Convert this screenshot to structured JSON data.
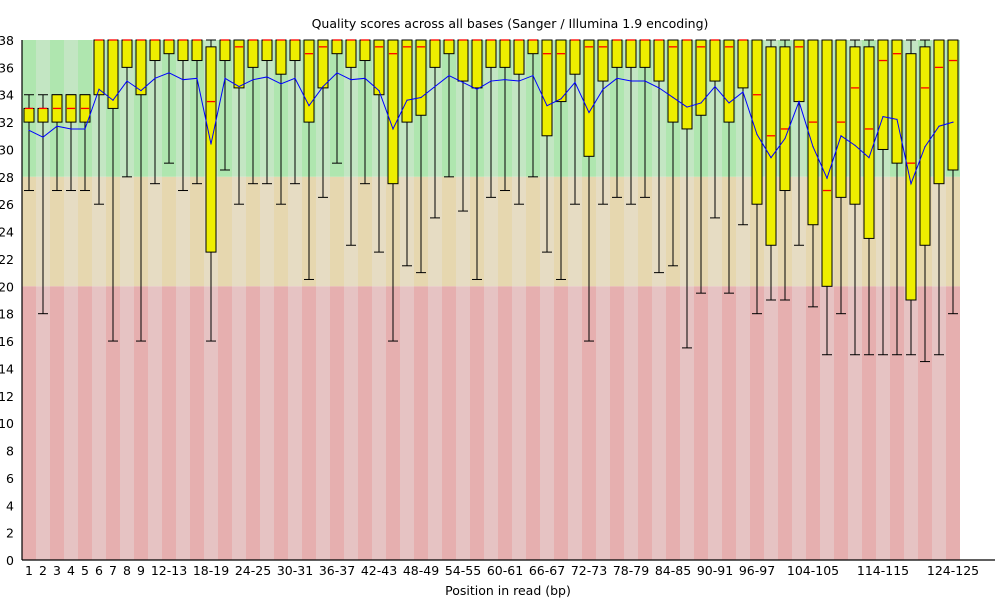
{
  "chart_data": {
    "type": "boxplot",
    "title": "Quality scores across all bases (Sanger / Illumina 1.9 encoding)",
    "xlabel": "Position in read (bp)",
    "ylabel": "",
    "ylim": [
      0,
      38
    ],
    "y_ticks": [
      "0",
      "2",
      "4",
      "6",
      "8",
      "10",
      "12",
      "14",
      "16",
      "18",
      "20",
      "22",
      "24",
      "26",
      "28",
      "30",
      "32",
      "34",
      "36",
      "38"
    ],
    "x_tick_labels": [
      {
        "label": "1",
        "bin": 0
      },
      {
        "label": "2",
        "bin": 1
      },
      {
        "label": "3",
        "bin": 2
      },
      {
        "label": "4",
        "bin": 3
      },
      {
        "label": "5",
        "bin": 4
      },
      {
        "label": "6",
        "bin": 5
      },
      {
        "label": "7",
        "bin": 6
      },
      {
        "label": "8",
        "bin": 7
      },
      {
        "label": "9",
        "bin": 8
      },
      {
        "label": "12-13",
        "bin": 10
      },
      {
        "label": "18-19",
        "bin": 13
      },
      {
        "label": "24-25",
        "bin": 16
      },
      {
        "label": "30-31",
        "bin": 19
      },
      {
        "label": "36-37",
        "bin": 22
      },
      {
        "label": "42-43",
        "bin": 25
      },
      {
        "label": "48-49",
        "bin": 28
      },
      {
        "label": "54-55",
        "bin": 31
      },
      {
        "label": "60-61",
        "bin": 34
      },
      {
        "label": "66-67",
        "bin": 37
      },
      {
        "label": "72-73",
        "bin": 40
      },
      {
        "label": "78-79",
        "bin": 43
      },
      {
        "label": "84-85",
        "bin": 46
      },
      {
        "label": "90-91",
        "bin": 49
      },
      {
        "label": "96-97",
        "bin": 52
      },
      {
        "label": "104-105",
        "bin": 56
      },
      {
        "label": "114-115",
        "bin": 61
      },
      {
        "label": "124-125",
        "bin": 66
      }
    ],
    "bin_count": 67,
    "quality_zones": [
      {
        "zone": "good",
        "from": 28,
        "to": 38,
        "colors": [
          "#afe6af",
          "#c3e6c3"
        ]
      },
      {
        "zone": "reasonable",
        "from": 20,
        "to": 28,
        "colors": [
          "#e6d7af",
          "#e6dcc3"
        ]
      },
      {
        "zone": "poor",
        "from": 0,
        "to": 20,
        "colors": [
          "#e6afaf",
          "#e6c3c3"
        ]
      }
    ],
    "colors": {
      "box": "#eeee00",
      "median": "#ff0000",
      "mean": "#0000ff",
      "whisker": "#000000"
    },
    "lower_whisker": [
      27,
      18,
      27,
      27,
      27,
      26,
      16,
      28,
      16,
      27.5,
      29,
      27,
      27.5,
      16,
      28.5,
      26,
      27.5,
      27.5,
      26,
      27.5,
      20.5,
      26.5,
      29,
      23,
      27.5,
      22.5,
      16,
      21.5,
      21,
      25,
      28,
      25.5,
      20.5,
      26.5,
      27,
      26,
      28,
      22.5,
      20.5,
      26,
      16,
      26,
      26.5,
      26,
      26.5,
      21,
      21.5,
      15.5,
      19.5,
      25,
      19.5,
      24.5,
      18,
      19,
      19,
      23,
      18.5,
      15,
      18,
      15,
      15,
      15,
      15,
      15,
      14.5,
      15,
      18
    ],
    "q1": [
      32,
      32,
      32,
      32,
      32,
      34,
      33,
      36,
      34,
      36.5,
      37,
      36.5,
      36.5,
      22.5,
      36.5,
      34.5,
      36,
      36.5,
      35.5,
      36.5,
      32,
      34.5,
      37,
      36,
      36.5,
      34,
      27.5,
      32,
      32.5,
      36,
      37,
      35,
      34.5,
      36,
      36,
      35.5,
      37,
      31,
      33.5,
      35.5,
      29.5,
      35,
      36,
      36,
      36,
      35,
      32,
      31.5,
      32.5,
      35,
      32,
      34.5,
      26,
      23,
      27,
      33.5,
      24.5,
      20,
      26.5,
      26,
      23.5,
      30,
      29,
      19,
      23,
      27.5,
      28.5
    ],
    "median": [
      33,
      33,
      33,
      33,
      33,
      38,
      38,
      38,
      38,
      38,
      38,
      38,
      38,
      33.5,
      38,
      37.5,
      38,
      38,
      38,
      38,
      37,
      37.5,
      38,
      38,
      38,
      37.5,
      37,
      37.5,
      37.5,
      38,
      38,
      38,
      38,
      38,
      38,
      38,
      38,
      37,
      37,
      38,
      37.5,
      37.5,
      38,
      38,
      38,
      38,
      37.5,
      38,
      37.5,
      38,
      37.5,
      38,
      34,
      31,
      31.5,
      37.5,
      32,
      27,
      32,
      34.5,
      31.5,
      36.5,
      37,
      29,
      34.5,
      36,
      36.5
    ],
    "q3": [
      33,
      33,
      34,
      34,
      34,
      38,
      38,
      38,
      38,
      38,
      38,
      38,
      38,
      37.5,
      38,
      38,
      38,
      38,
      38,
      38,
      38,
      38,
      38,
      38,
      38,
      38,
      38,
      38,
      38,
      38,
      38,
      38,
      38,
      38,
      38,
      38,
      38,
      38,
      38,
      38,
      38,
      38,
      38,
      38,
      38,
      38,
      38,
      38,
      38,
      38,
      38,
      38,
      38,
      37.5,
      37.5,
      38,
      38,
      38,
      38,
      37.5,
      37.5,
      38,
      38,
      37,
      37.5,
      38,
      38
    ],
    "upper_whisker": [
      34,
      34,
      34,
      34,
      34,
      38,
      38,
      38,
      38,
      38,
      38,
      38,
      38,
      38,
      38,
      38,
      38,
      38,
      38,
      38,
      38,
      38,
      38,
      38,
      38,
      38,
      38,
      38,
      38,
      38,
      38,
      38,
      38,
      38,
      38,
      38,
      38,
      38,
      38,
      38,
      38,
      38,
      38,
      38,
      38,
      38,
      38,
      38,
      38,
      38,
      38,
      38,
      38,
      38,
      38,
      38,
      38,
      38,
      38,
      38,
      38,
      38,
      38,
      38,
      38,
      38,
      38
    ],
    "mean": [
      31.4,
      30.9,
      31.7,
      31.5,
      31.5,
      34.4,
      33.6,
      35.0,
      34.3,
      35.2,
      35.6,
      35.1,
      35.2,
      30.4,
      35.2,
      34.6,
      35.1,
      35.3,
      34.8,
      35.2,
      33.2,
      34.6,
      35.6,
      35.1,
      35.2,
      34.3,
      31.5,
      33.6,
      33.8,
      34.6,
      35.4,
      34.9,
      34.4,
      35.0,
      35.1,
      35.0,
      35.4,
      33.2,
      33.7,
      34.9,
      32.7,
      34.4,
      35.2,
      35.0,
      35.0,
      34.5,
      33.8,
      33.1,
      33.4,
      34.6,
      33.4,
      34.2,
      31.1,
      29.4,
      30.8,
      33.5,
      30.2,
      27.9,
      31.0,
      30.3,
      29.4,
      32.4,
      32.2,
      27.5,
      30.2,
      31.7,
      32.0
    ]
  }
}
